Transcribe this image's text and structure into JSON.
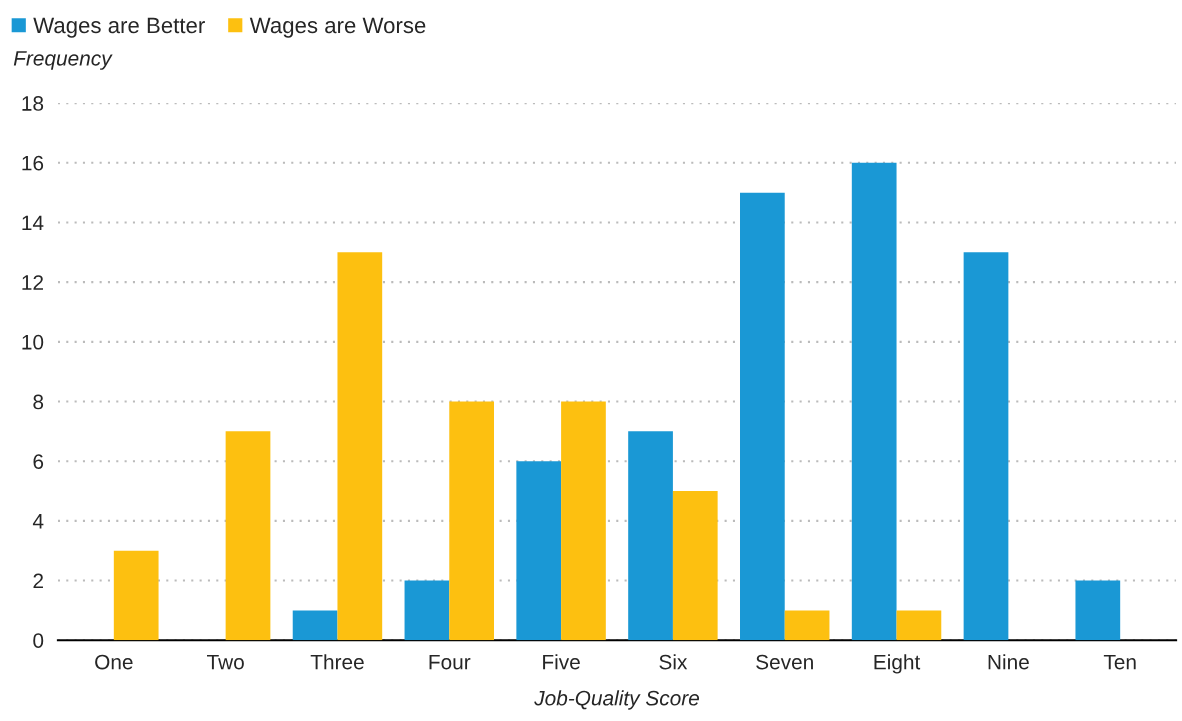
{
  "chart_data": {
    "type": "bar",
    "xlabel": "Job-Quality Score",
    "ylabel": "Frequency",
    "categories": [
      "One",
      "Two",
      "Three",
      "Four",
      "Five",
      "Six",
      "Seven",
      "Eight",
      "Nine",
      "Ten"
    ],
    "series": [
      {
        "name": "Wages are Better",
        "color": "#1a98d5",
        "values": [
          0,
          0,
          1,
          2,
          6,
          7,
          15,
          16,
          13,
          2
        ]
      },
      {
        "name": "Wages are Worse",
        "color": "#fdc010",
        "values": [
          3,
          7,
          13,
          8,
          8,
          5,
          1,
          1,
          0,
          0
        ]
      }
    ],
    "ylim": [
      0,
      18
    ],
    "yticks": [
      0,
      2,
      4,
      6,
      8,
      10,
      12,
      14,
      16,
      18
    ],
    "grid": "y",
    "legend": "top left"
  }
}
